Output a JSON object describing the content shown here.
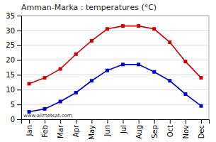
{
  "chart_data": {
    "type": "line",
    "title": "Amman-Marka : temperatures (°C)",
    "categories": [
      "Jan",
      "Feb",
      "Mar",
      "Apr",
      "May",
      "Jun",
      "Jul",
      "Aug",
      "Sep",
      "Oct",
      "Nov",
      "Dec"
    ],
    "series": [
      {
        "color": "#cc0000",
        "marker": "square",
        "values": [
          12,
          14,
          17,
          22,
          26.5,
          30.5,
          31.5,
          31.5,
          30.5,
          26,
          19.5,
          14
        ]
      },
      {
        "color": "#0000cc",
        "marker": "square",
        "values": [
          2.5,
          3.5,
          6,
          9,
          13,
          16.5,
          18.5,
          18.5,
          16,
          13,
          8.5,
          4.5
        ]
      }
    ],
    "ylim": [
      0,
      35
    ],
    "yticks": [
      0,
      5,
      10,
      15,
      20,
      25,
      30,
      35
    ],
    "grid": true,
    "annotations": [
      "www.allmetsat.com"
    ]
  }
}
